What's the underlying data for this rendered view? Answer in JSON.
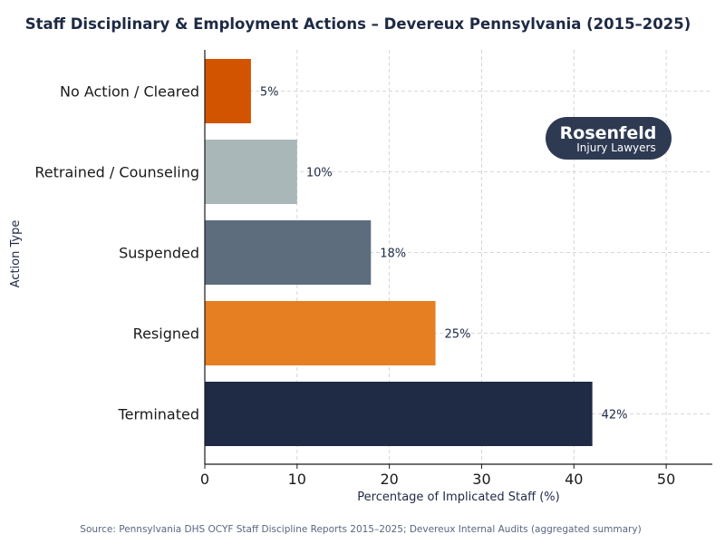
{
  "chart_data": {
    "type": "bar",
    "orientation": "horizontal",
    "title": "Staff Disciplinary & Employment Actions – Devereux Pennsylvania (2015–2025)",
    "xlabel": "Percentage of Implicated Staff (%)",
    "ylabel": "Action Type",
    "categories": [
      "No Action / Cleared",
      "Retrained / Counseling",
      "Suspended",
      "Resigned",
      "Terminated"
    ],
    "values": [
      5,
      10,
      18,
      25,
      42
    ],
    "value_labels": [
      "5%",
      "10%",
      "18%",
      "25%",
      "42%"
    ],
    "colors": [
      "#d35400",
      "#aab7b8",
      "#5d6d7e",
      "#e67e22",
      "#1f2a44"
    ],
    "xlim": [
      0,
      55
    ],
    "xticks": [
      0,
      10,
      20,
      30,
      40,
      50
    ],
    "grid": true
  },
  "logo": {
    "text": "Rosenfeld",
    "subtext": "Injury Lawyers",
    "bg_color": "#2e3a52"
  },
  "source": "Source: Pennsylvania DHS OCYF Staff Discipline Reports 2015–2025; Devereux Internal Audits (aggregated summary)"
}
